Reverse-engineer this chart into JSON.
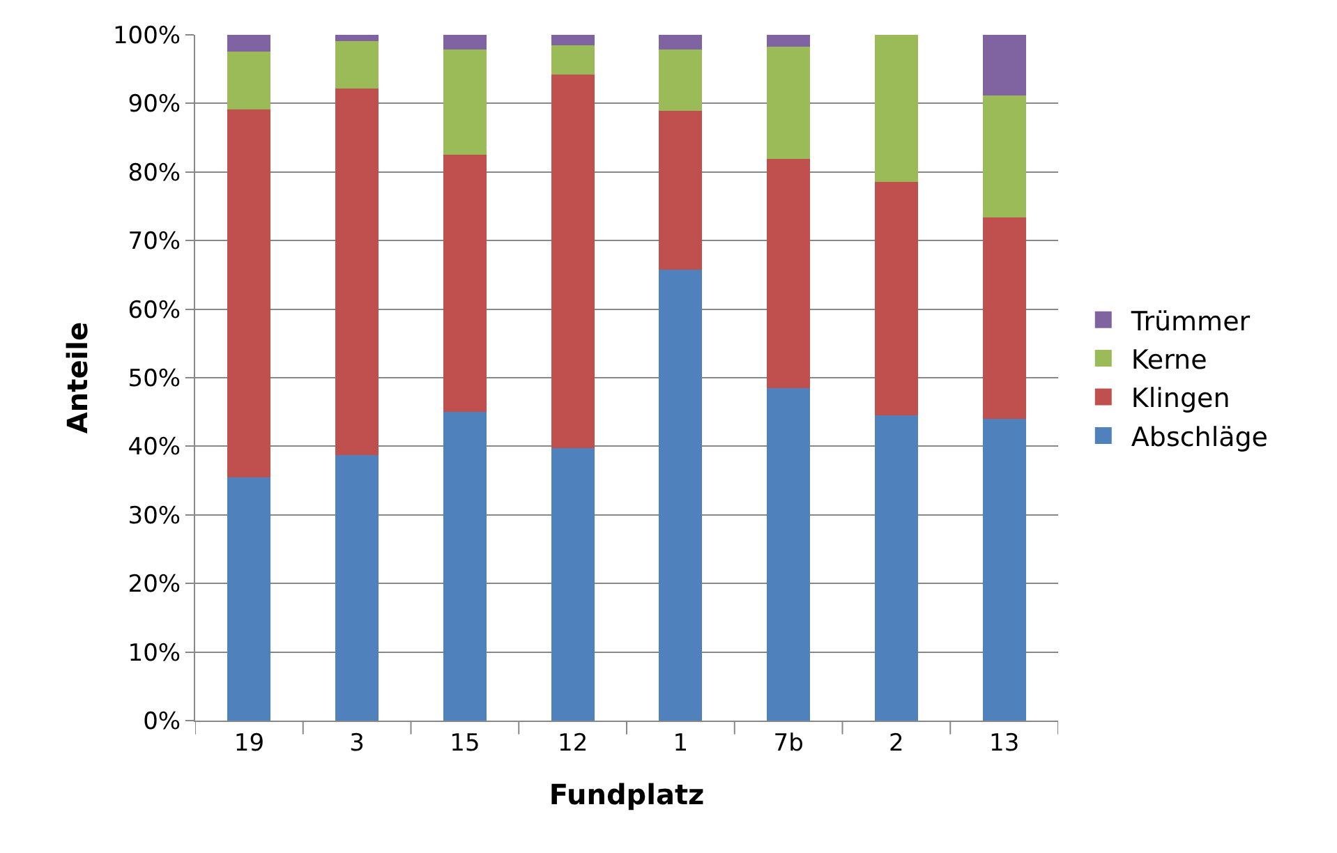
{
  "chart_data": {
    "type": "bar",
    "stacked": true,
    "xlabel": "Fundplatz",
    "ylabel": "Anteile",
    "categories": [
      "19",
      "3",
      "15",
      "12",
      "1",
      "7b",
      "2",
      "13"
    ],
    "series": [
      {
        "name": "Abschläge",
        "color": "#4f81bd",
        "values": [
          35.5,
          38.7,
          45.0,
          39.7,
          65.8,
          48.5,
          44.5,
          44.0
        ]
      },
      {
        "name": "Klingen",
        "color": "#c0504d",
        "values": [
          53.6,
          53.5,
          37.5,
          54.5,
          23.1,
          33.4,
          34.1,
          29.4
        ]
      },
      {
        "name": "Kerne",
        "color": "#9bbb59",
        "values": [
          8.5,
          6.9,
          15.4,
          4.3,
          9.0,
          16.4,
          21.4,
          17.8
        ]
      },
      {
        "name": "Trümmer",
        "color": "#8064a2",
        "values": [
          2.4,
          0.9,
          2.1,
          1.5,
          2.1,
          1.7,
          0,
          8.8
        ]
      }
    ],
    "ylim": [
      0,
      100
    ],
    "yticks": [
      {
        "value": 0,
        "label": "0%"
      },
      {
        "value": 10,
        "label": "10%"
      },
      {
        "value": 20,
        "label": "20%"
      },
      {
        "value": 30,
        "label": "30%"
      },
      {
        "value": 40,
        "label": "40%"
      },
      {
        "value": 50,
        "label": "50%"
      },
      {
        "value": 60,
        "label": "60%"
      },
      {
        "value": 70,
        "label": "70%"
      },
      {
        "value": 80,
        "label": "80%"
      },
      {
        "value": 90,
        "label": "90%"
      },
      {
        "value": 100,
        "label": "100%"
      }
    ],
    "grid": "y",
    "legend": "right"
  }
}
